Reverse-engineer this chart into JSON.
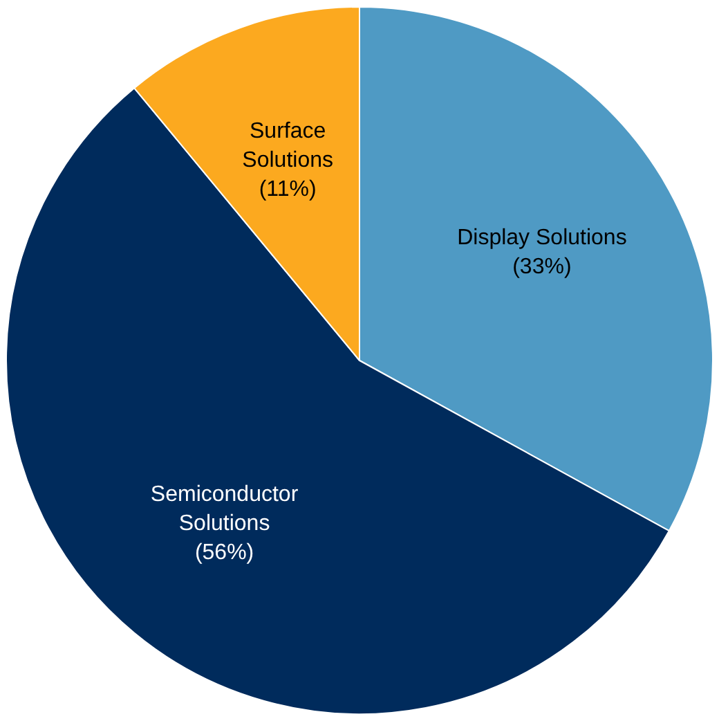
{
  "chart_data": {
    "type": "pie",
    "categories": [
      "Display Solutions",
      "Semiconductor Solutions",
      "Surface Solutions"
    ],
    "values": [
      33,
      56,
      11
    ],
    "colors": [
      "#4f9ac4",
      "#002b5c",
      "#fca91f"
    ],
    "value_labels": [
      "(33%)",
      "(56%)",
      "(11%)"
    ],
    "legend": false
  }
}
